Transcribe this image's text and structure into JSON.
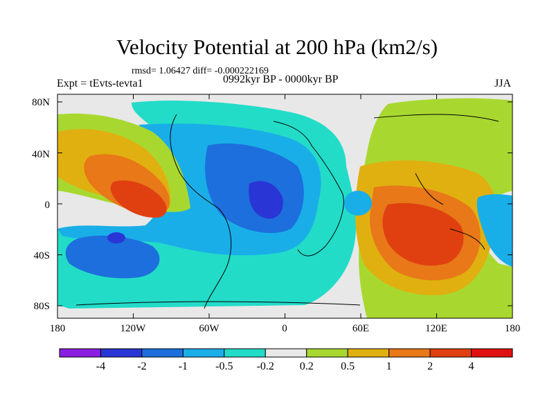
{
  "title": "Velocity Potential at 200 hPa (km2/s)",
  "stats_line": "rmsd= 1.06427 diff= -0.000222169",
  "experiment": "Expt = tEvts-tevta1",
  "period": "0992kyr BP - 0000kyr BP",
  "season": "JJA",
  "lat_labels": [
    "80N",
    "40N",
    "0",
    "40S",
    "80S"
  ],
  "lon_labels": [
    "180",
    "120W",
    "60W",
    "0",
    "60E",
    "120E",
    "180"
  ],
  "colorbar": {
    "labels": [
      "-4",
      "-2",
      "-1",
      "-0.5",
      "-0.2",
      "0.2",
      "0.5",
      "1",
      "2",
      "4"
    ],
    "colors": [
      "#8a1ee0",
      "#2a35d6",
      "#1c6fdc",
      "#1aaee8",
      "#22dcc8",
      "#e8e8e8",
      "#a8d830",
      "#e0b010",
      "#e87818",
      "#e04010",
      "#e01010"
    ]
  }
}
